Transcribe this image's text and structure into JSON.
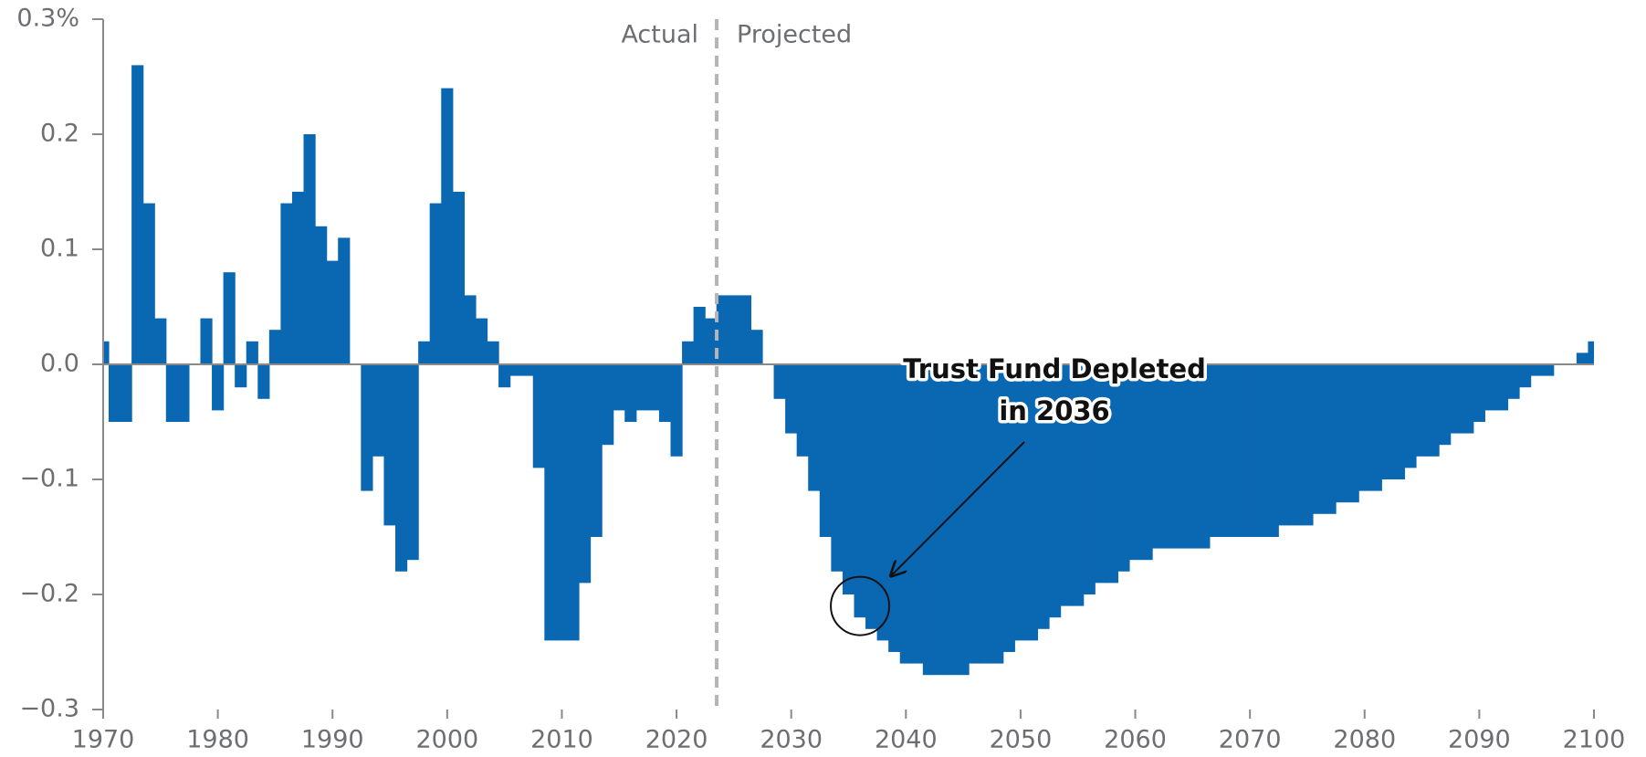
{
  "chart_data": {
    "type": "bar",
    "x": [
      1970,
      1971,
      1972,
      1973,
      1974,
      1975,
      1976,
      1977,
      1978,
      1979,
      1980,
      1981,
      1982,
      1983,
      1984,
      1985,
      1986,
      1987,
      1988,
      1989,
      1990,
      1991,
      1992,
      1993,
      1994,
      1995,
      1996,
      1997,
      1998,
      1999,
      2000,
      2001,
      2002,
      2003,
      2004,
      2005,
      2006,
      2007,
      2008,
      2009,
      2010,
      2011,
      2012,
      2013,
      2014,
      2015,
      2016,
      2017,
      2018,
      2019,
      2020,
      2021,
      2022,
      2023,
      2024,
      2025,
      2026,
      2027,
      2028,
      2029,
      2030,
      2031,
      2032,
      2033,
      2034,
      2035,
      2036,
      2037,
      2038,
      2039,
      2040,
      2041,
      2042,
      2043,
      2044,
      2045,
      2046,
      2047,
      2048,
      2049,
      2050,
      2051,
      2052,
      2053,
      2054,
      2055,
      2056,
      2057,
      2058,
      2059,
      2060,
      2061,
      2062,
      2063,
      2064,
      2065,
      2066,
      2067,
      2068,
      2069,
      2070,
      2071,
      2072,
      2073,
      2074,
      2075,
      2076,
      2077,
      2078,
      2079,
      2080,
      2081,
      2082,
      2083,
      2084,
      2085,
      2086,
      2087,
      2088,
      2089,
      2090,
      2091,
      2092,
      2093,
      2094,
      2095,
      2096,
      2097,
      2098,
      2099,
      2100
    ],
    "values": [
      0.02,
      -0.05,
      -0.05,
      0.26,
      0.14,
      0.04,
      -0.05,
      -0.05,
      0,
      0.04,
      -0.04,
      0.08,
      -0.02,
      0.02,
      -0.03,
      0.03,
      0.14,
      0.15,
      0.2,
      0.12,
      0.09,
      0.11,
      0,
      -0.11,
      -0.08,
      -0.14,
      -0.18,
      -0.17,
      0.02,
      0.14,
      0.24,
      0.15,
      0.06,
      0.04,
      0.02,
      -0.02,
      -0.01,
      -0.01,
      -0.09,
      -0.24,
      -0.24,
      -0.24,
      -0.19,
      -0.15,
      -0.07,
      -0.04,
      -0.05,
      -0.04,
      -0.04,
      -0.05,
      -0.08,
      0.02,
      0.05,
      0.04,
      0.06,
      0.06,
      0.06,
      0.03,
      0,
      -0.03,
      -0.06,
      -0.08,
      -0.11,
      -0.15,
      -0.18,
      -0.2,
      -0.22,
      -0.23,
      -0.24,
      -0.25,
      -0.26,
      -0.26,
      -0.27,
      -0.27,
      -0.27,
      -0.27,
      -0.26,
      -0.26,
      -0.26,
      -0.25,
      -0.24,
      -0.24,
      -0.23,
      -0.22,
      -0.21,
      -0.21,
      -0.2,
      -0.19,
      -0.19,
      -0.18,
      -0.17,
      -0.17,
      -0.16,
      -0.16,
      -0.16,
      -0.16,
      -0.16,
      -0.15,
      -0.15,
      -0.15,
      -0.15,
      -0.15,
      -0.15,
      -0.14,
      -0.14,
      -0.14,
      -0.13,
      -0.13,
      -0.12,
      -0.12,
      -0.11,
      -0.11,
      -0.1,
      -0.1,
      -0.09,
      -0.08,
      -0.08,
      -0.07,
      -0.06,
      -0.06,
      -0.05,
      -0.04,
      -0.04,
      -0.03,
      -0.02,
      -0.01,
      -0.01,
      0,
      0,
      0.01,
      0.02
    ],
    "color": "#0a67b1",
    "xlim": [
      1970,
      2100
    ],
    "xticks": [
      1970,
      1980,
      1990,
      2000,
      2010,
      2020,
      2030,
      2040,
      2050,
      2060,
      2070,
      2080,
      2090,
      2100
    ],
    "ylim": [
      -0.3,
      0.3
    ],
    "yticks": [
      {
        "value": 0.3,
        "label": "0.3%"
      },
      0.2,
      0.1,
      {
        "value": 0,
        "label": "0.0"
      },
      {
        "value": -0.1,
        "label": "−0.1"
      },
      {
        "value": -0.2,
        "label": "−0.2"
      },
      {
        "value": -0.3,
        "label": "−0.3"
      }
    ],
    "divider": {
      "x": 2023.5,
      "left_label": "Actual",
      "right_label": "Projected"
    },
    "annotation": {
      "lines": [
        "Trust Fund Depleted",
        "in 2036"
      ],
      "x": 2036,
      "y": -0.21
    }
  }
}
